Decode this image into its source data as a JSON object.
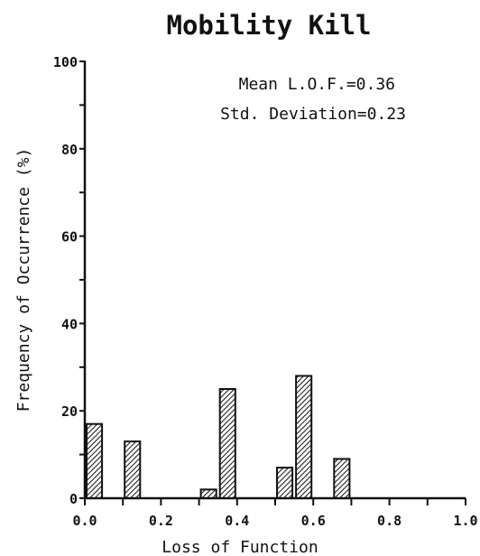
{
  "chart_data": {
    "type": "bar",
    "title": "Mobility Kill",
    "xlabel": "Loss of Function",
    "ylabel": "Frequency of Occurrence (%)",
    "annotations": [
      "Mean L.O.F.=0.36",
      "Std. Deviation=0.23"
    ],
    "xlim": [
      0,
      1.0
    ],
    "ylim": [
      0,
      100
    ],
    "bin_width": 0.05,
    "x_ticks": [
      "0.0",
      "0.2",
      "0.4",
      "0.6",
      "0.8",
      "1.0"
    ],
    "y_ticks": [
      "0",
      "20",
      "40",
      "60",
      "80",
      "100"
    ],
    "bins": [
      {
        "x": 0.0,
        "value": 17
      },
      {
        "x": 0.1,
        "value": 13
      },
      {
        "x": 0.3,
        "value": 2
      },
      {
        "x": 0.35,
        "value": 25
      },
      {
        "x": 0.5,
        "value": 7
      },
      {
        "x": 0.55,
        "value": 28
      },
      {
        "x": 0.65,
        "value": 9
      }
    ],
    "grid": false,
    "bar_fill": "diagonal-hatch"
  }
}
